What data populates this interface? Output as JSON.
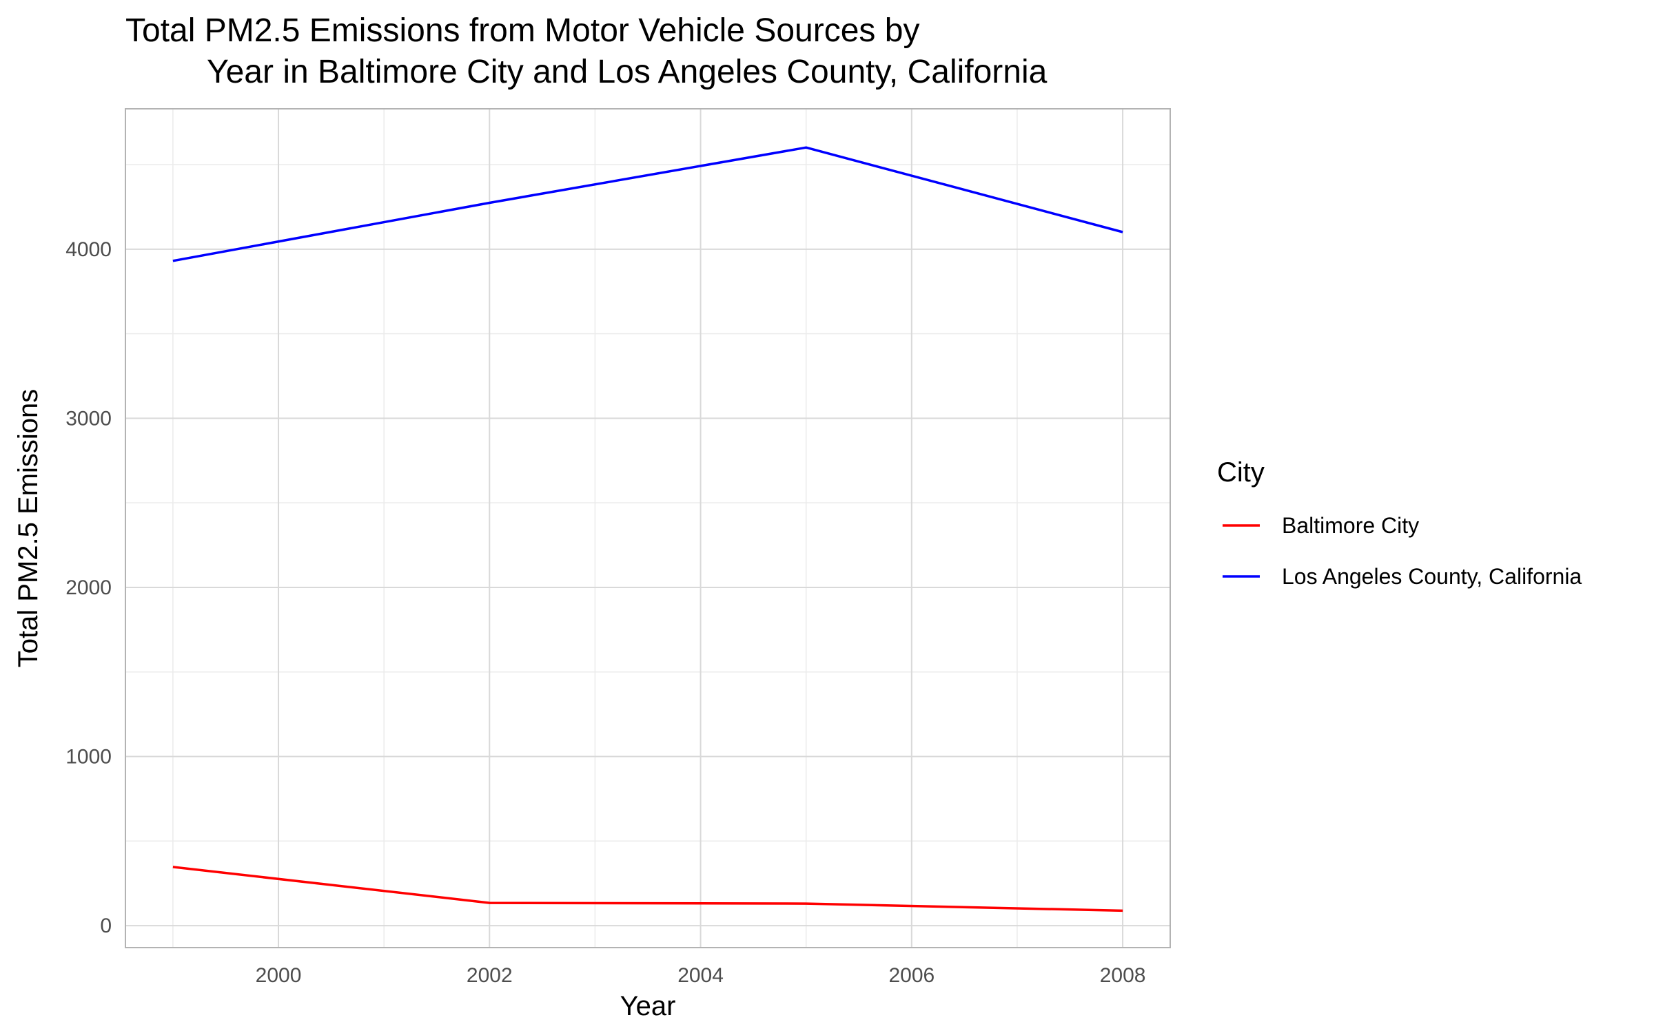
{
  "chart_data": {
    "type": "line",
    "title": "Total PM2.5 Emissions from Motor Vehicle Sources by",
    "subtitle": "Year in Baltimore City and Los Angeles County, California",
    "xlabel": "Year",
    "ylabel": "Total PM2.5 Emissions",
    "xlim": [
      1998.55,
      2008.45
    ],
    "ylim": [
      -130,
      4830
    ],
    "x_ticks": [
      2000,
      2002,
      2004,
      2006,
      2008
    ],
    "y_ticks": [
      0,
      1000,
      2000,
      3000,
      4000
    ],
    "grid": true,
    "legend": {
      "title": "City",
      "position": "right"
    },
    "x": [
      1999,
      2002,
      2005,
      2008
    ],
    "series": [
      {
        "name": "Baltimore City",
        "color": "#ff0000",
        "values": [
          346.8,
          134.3,
          130.4,
          88.3
        ]
      },
      {
        "name": "Los Angeles County, California",
        "color": "#0000ff",
        "values": [
          3931,
          4274,
          4601,
          4101
        ]
      }
    ]
  }
}
